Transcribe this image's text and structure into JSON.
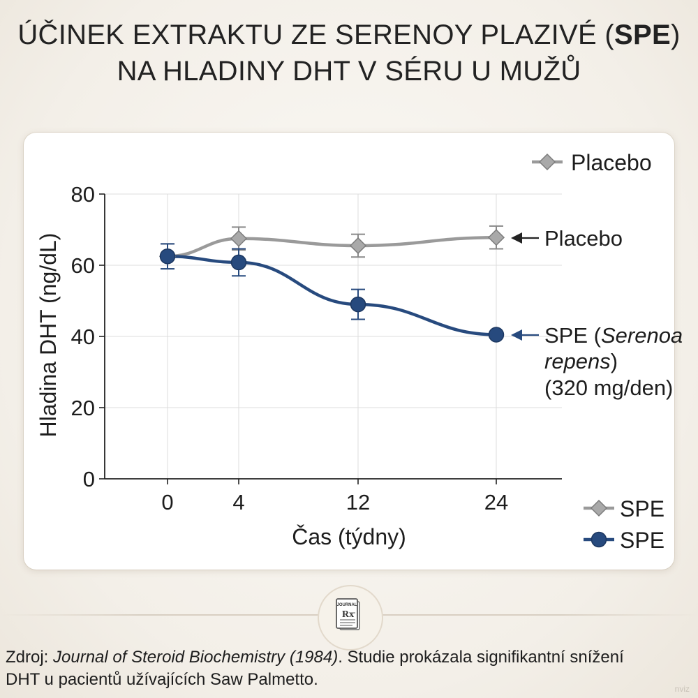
{
  "title": {
    "line1_main": "ÚČINEK EXTRAKTU ZE SERENOY PLAZIVÉ (",
    "line1_bold": "SPE",
    "line1_end": ")",
    "line2": "NA HLADINY DHT V SÉRU U MUŽŮ"
  },
  "chart_data": {
    "type": "line",
    "xlabel": "Čas (týdny)",
    "ylabel": "Hladina DHT (ng/dL)",
    "categories": [
      0,
      4,
      12,
      24
    ],
    "x_tick_labels": [
      "0",
      "4",
      "12",
      "24"
    ],
    "y_ticks": [
      0,
      20,
      40,
      60,
      80
    ],
    "y_tick_labels": [
      "0",
      "20",
      "40",
      "60",
      "80"
    ],
    "ylim": [
      0,
      80
    ],
    "grid": true,
    "series": [
      {
        "name": "Placebo",
        "marker": "diamond",
        "color": "#9a9a9a",
        "values": [
          62.5,
          67.5,
          65.5,
          67.8
        ],
        "error": [
          3.5,
          3.2,
          3.2,
          3.2
        ]
      },
      {
        "name": "SPE",
        "marker": "circle",
        "color": "#274a7e",
        "values": [
          62.5,
          60.8,
          49.0,
          40.5
        ],
        "error": [
          3.5,
          3.8,
          4.2,
          0
        ]
      }
    ],
    "legend_top": {
      "label": "Placebo",
      "marker": "diamond",
      "placement": "top-right"
    },
    "legend_bottom": [
      {
        "label": "SPE",
        "marker": "diamond"
      },
      {
        "label": "SPE",
        "marker": "circle"
      }
    ],
    "annotations": {
      "placebo": "Placebo",
      "spe_line1_pre": "SPE (",
      "spe_line1_italic": "Serenoa",
      "spe_line2_italic": "repens",
      "spe_line2_post": ")",
      "spe_line3": "(320 mg/den)"
    }
  },
  "badge": {
    "label": "JOURNAL",
    "symbol": "Rx"
  },
  "source": {
    "prefix": "Zdroj: ",
    "journal_italic": "Journal of Steroid Biochemistry (1984)",
    "rest": ". Studie prokázala signifikantní snížení",
    "line2": "DHT u pacientů užívajících Saw Palmetto."
  },
  "watermark": "nviz"
}
